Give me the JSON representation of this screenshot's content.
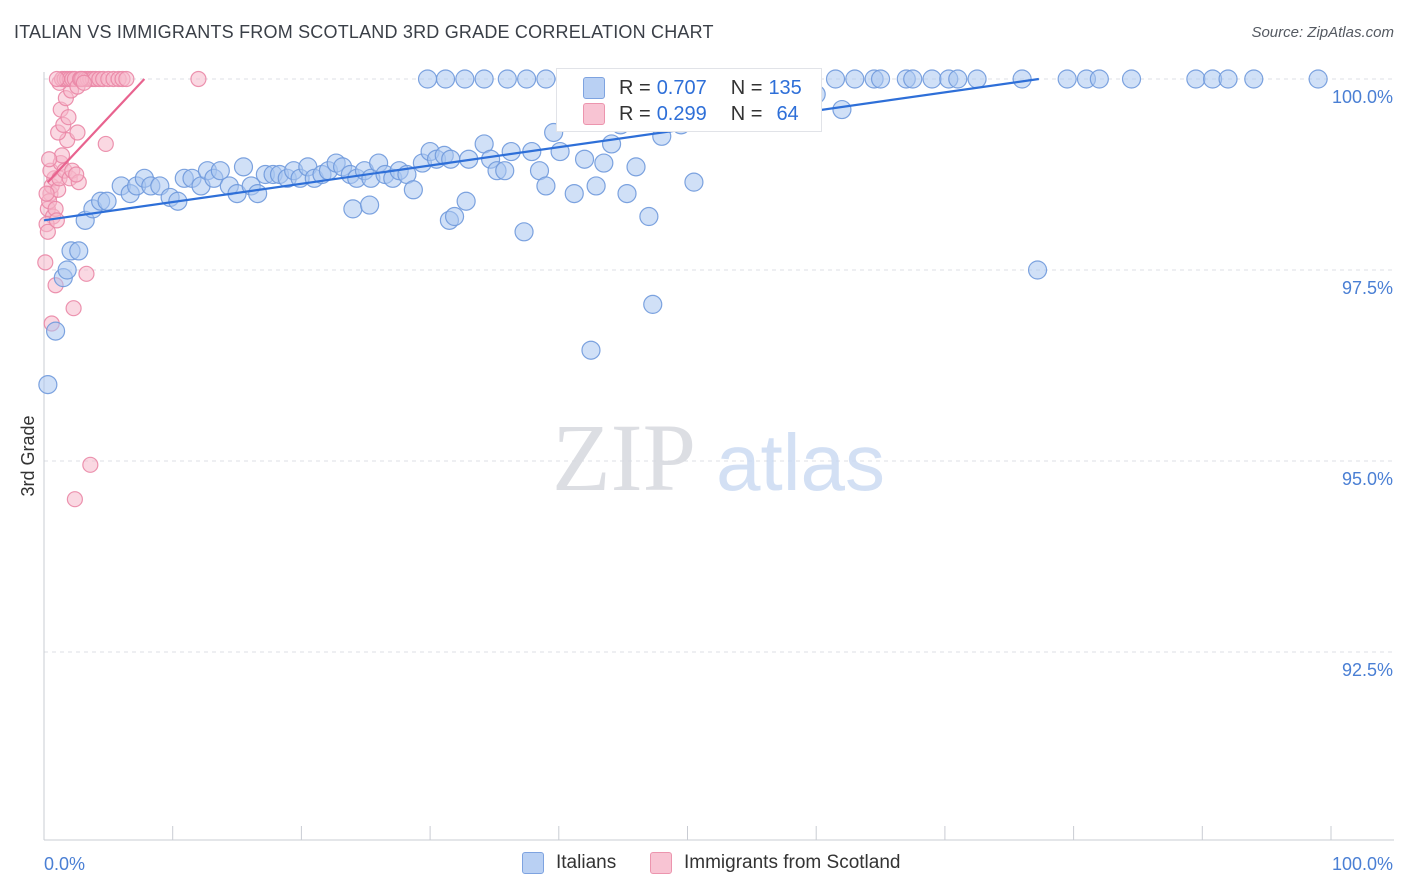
{
  "header": {
    "title": "ITALIAN VS IMMIGRANTS FROM SCOTLAND 3RD GRADE CORRELATION CHART",
    "source": "Source: ZipAtlas.com"
  },
  "legend": {
    "series1": {
      "r_label": "R =",
      "r_value": "0.707",
      "n_label": "N =",
      "n_value": "135"
    },
    "series2": {
      "r_label": "R =",
      "r_value": "0.299",
      "n_label": "N =",
      "n_value": "64"
    }
  },
  "colors": {
    "blue_fill": "#aac6f0",
    "blue_stroke": "#6f99dc",
    "blue_line": "#2e6fd8",
    "pink_fill": "#f6b8cb",
    "pink_stroke": "#ea87a6",
    "pink_line": "#e8638f",
    "grid": "#dcdfe5",
    "tick_label": "#4a7fd4"
  },
  "watermark": {
    "zip": "ZIP",
    "atlas": "atlas"
  },
  "chart_data": {
    "type": "scatter",
    "title": "ITALIAN VS IMMIGRANTS FROM SCOTLAND 3RD GRADE CORRELATION CHART",
    "xlabel": "",
    "ylabel": "3rd Grade",
    "xlim": [
      0,
      100
    ],
    "ylim": [
      90.0,
      100.2
    ],
    "x_tick_labels": [
      "0.0%",
      "100.0%"
    ],
    "y_ticks": [
      {
        "value": 100.0,
        "label": "100.0%"
      },
      {
        "value": 97.5,
        "label": "97.5%"
      },
      {
        "value": 95.0,
        "label": "95.0%"
      },
      {
        "value": 92.5,
        "label": "92.5%"
      }
    ],
    "legend_position": "top-center",
    "series": [
      {
        "name": "Italians",
        "color": "blue",
        "r": 0.707,
        "n": 135,
        "trend": {
          "x": [
            0,
            77.3
          ],
          "y": [
            98.15,
            100.0
          ]
        },
        "points": [
          [
            0.3,
            96.0
          ],
          [
            0.9,
            96.7
          ],
          [
            1.5,
            97.4
          ],
          [
            1.8,
            97.5
          ],
          [
            2.1,
            97.75
          ],
          [
            2.7,
            97.75
          ],
          [
            3.2,
            98.15
          ],
          [
            3.8,
            98.3
          ],
          [
            4.4,
            98.4
          ],
          [
            4.9,
            98.4
          ],
          [
            6.0,
            98.6
          ],
          [
            6.7,
            98.5
          ],
          [
            7.2,
            98.6
          ],
          [
            7.8,
            98.7
          ],
          [
            8.3,
            98.6
          ],
          [
            9.0,
            98.6
          ],
          [
            9.8,
            98.45
          ],
          [
            10.4,
            98.4
          ],
          [
            10.9,
            98.7
          ],
          [
            11.5,
            98.7
          ],
          [
            12.2,
            98.6
          ],
          [
            12.7,
            98.8
          ],
          [
            13.2,
            98.7
          ],
          [
            13.7,
            98.8
          ],
          [
            14.4,
            98.6
          ],
          [
            15.0,
            98.5
          ],
          [
            15.5,
            98.85
          ],
          [
            16.1,
            98.6
          ],
          [
            16.6,
            98.5
          ],
          [
            17.2,
            98.75
          ],
          [
            17.8,
            98.75
          ],
          [
            18.3,
            98.75
          ],
          [
            18.9,
            98.7
          ],
          [
            19.4,
            98.8
          ],
          [
            19.9,
            98.7
          ],
          [
            20.5,
            98.85
          ],
          [
            21.0,
            98.7
          ],
          [
            21.6,
            98.75
          ],
          [
            22.1,
            98.8
          ],
          [
            22.7,
            98.9
          ],
          [
            23.2,
            98.85
          ],
          [
            23.8,
            98.75
          ],
          [
            24.3,
            98.7
          ],
          [
            24.9,
            98.8
          ],
          [
            25.4,
            98.7
          ],
          [
            26.0,
            98.9
          ],
          [
            26.5,
            98.75
          ],
          [
            27.1,
            98.7
          ],
          [
            27.6,
            98.8
          ],
          [
            28.2,
            98.75
          ],
          [
            28.7,
            98.55
          ],
          [
            29.4,
            98.9
          ],
          [
            30.0,
            99.05
          ],
          [
            30.5,
            98.95
          ],
          [
            31.1,
            99.0
          ],
          [
            31.6,
            98.95
          ],
          [
            29.8,
            100.0
          ],
          [
            31.2,
            100.0
          ],
          [
            32.7,
            100.0
          ],
          [
            34.2,
            100.0
          ],
          [
            24.0,
            98.3
          ],
          [
            25.3,
            98.35
          ],
          [
            31.5,
            98.15
          ],
          [
            31.9,
            98.2
          ],
          [
            32.8,
            98.4
          ],
          [
            33.0,
            98.95
          ],
          [
            34.2,
            99.15
          ],
          [
            34.7,
            98.95
          ],
          [
            35.2,
            98.8
          ],
          [
            35.8,
            98.8
          ],
          [
            36.3,
            99.05
          ],
          [
            37.3,
            98.0
          ],
          [
            37.9,
            99.05
          ],
          [
            38.5,
            98.8
          ],
          [
            39.0,
            98.6
          ],
          [
            39.6,
            99.3
          ],
          [
            40.1,
            99.05
          ],
          [
            40.6,
            99.45
          ],
          [
            41.2,
            98.5
          ],
          [
            42.0,
            98.95
          ],
          [
            42.5,
            96.45
          ],
          [
            42.9,
            98.6
          ],
          [
            43.5,
            98.9
          ],
          [
            44.1,
            99.15
          ],
          [
            44.8,
            99.4
          ],
          [
            45.3,
            98.5
          ],
          [
            46.0,
            98.85
          ],
          [
            47.0,
            98.2
          ],
          [
            47.3,
            97.05
          ],
          [
            48.0,
            99.25
          ],
          [
            49.5,
            99.4
          ],
          [
            50.5,
            98.65
          ],
          [
            53.0,
            100.0
          ],
          [
            53.5,
            99.7
          ],
          [
            54.0,
            99.65
          ],
          [
            55.0,
            100.0
          ],
          [
            56.0,
            99.75
          ],
          [
            57.0,
            100.0
          ],
          [
            57.5,
            99.6
          ],
          [
            59.0,
            100.0
          ],
          [
            60.0,
            99.8
          ],
          [
            61.5,
            100.0
          ],
          [
            62.0,
            99.6
          ],
          [
            63.0,
            100.0
          ],
          [
            64.5,
            100.0
          ],
          [
            65.0,
            100.0
          ],
          [
            67.0,
            100.0
          ],
          [
            67.5,
            100.0
          ],
          [
            69.0,
            100.0
          ],
          [
            70.3,
            100.0
          ],
          [
            71.0,
            100.0
          ],
          [
            72.5,
            100.0
          ],
          [
            76.0,
            100.0
          ],
          [
            77.2,
            97.5
          ],
          [
            79.5,
            100.0
          ],
          [
            81.0,
            100.0
          ],
          [
            82.0,
            100.0
          ],
          [
            84.5,
            100.0
          ],
          [
            89.5,
            100.0
          ],
          [
            90.8,
            100.0
          ],
          [
            92.0,
            100.0
          ],
          [
            94.0,
            100.0
          ],
          [
            99.0,
            100.0
          ],
          [
            36.0,
            100.0
          ],
          [
            37.5,
            100.0
          ],
          [
            39.0,
            100.0
          ],
          [
            40.5,
            100.0
          ],
          [
            42.0,
            100.0
          ],
          [
            44.0,
            100.0
          ],
          [
            45.5,
            100.0
          ],
          [
            47.0,
            100.0
          ],
          [
            48.5,
            100.0
          ],
          [
            50.0,
            100.0
          ],
          [
            51.5,
            100.0
          ],
          [
            52.0,
            100.0
          ]
        ]
      },
      {
        "name": "Immigrants from Scotland",
        "color": "pink",
        "r": 0.299,
        "n": 64,
        "trend": {
          "x": [
            0.3,
            7.8
          ],
          "y": [
            98.65,
            100.0
          ]
        },
        "points": [
          [
            0.1,
            97.6
          ],
          [
            0.3,
            98.3
          ],
          [
            0.5,
            98.5
          ],
          [
            0.7,
            98.2
          ],
          [
            0.2,
            98.1
          ],
          [
            0.4,
            98.4
          ],
          [
            0.6,
            98.6
          ],
          [
            0.8,
            98.7
          ],
          [
            0.3,
            98.0
          ],
          [
            0.5,
            98.8
          ],
          [
            0.9,
            98.3
          ],
          [
            1.1,
            98.55
          ],
          [
            1.3,
            98.9
          ],
          [
            1.0,
            98.15
          ],
          [
            1.2,
            98.7
          ],
          [
            1.4,
            99.0
          ],
          [
            1.6,
            98.8
          ],
          [
            1.8,
            99.2
          ],
          [
            2.0,
            98.7
          ],
          [
            2.2,
            98.8
          ],
          [
            1.1,
            99.3
          ],
          [
            1.3,
            99.6
          ],
          [
            1.5,
            99.4
          ],
          [
            1.7,
            99.75
          ],
          [
            1.9,
            99.5
          ],
          [
            2.1,
            99.85
          ],
          [
            1.2,
            99.95
          ],
          [
            1.4,
            100.0
          ],
          [
            1.6,
            100.0
          ],
          [
            1.8,
            100.0
          ],
          [
            2.0,
            100.0
          ],
          [
            2.2,
            100.0
          ],
          [
            2.4,
            100.0
          ],
          [
            2.6,
            99.9
          ],
          [
            2.8,
            100.0
          ],
          [
            3.0,
            100.0
          ],
          [
            3.2,
            100.0
          ],
          [
            3.4,
            100.0
          ],
          [
            3.6,
            100.0
          ],
          [
            3.8,
            100.0
          ],
          [
            4.0,
            100.0
          ],
          [
            4.3,
            100.0
          ],
          [
            4.6,
            100.0
          ],
          [
            5.0,
            100.0
          ],
          [
            5.4,
            100.0
          ],
          [
            5.8,
            100.0
          ],
          [
            6.1,
            100.0
          ],
          [
            6.4,
            100.0
          ],
          [
            4.8,
            99.15
          ],
          [
            2.6,
            99.3
          ],
          [
            3.3,
            97.45
          ],
          [
            2.3,
            97.0
          ],
          [
            3.6,
            94.95
          ],
          [
            2.4,
            94.5
          ],
          [
            0.6,
            96.8
          ],
          [
            0.9,
            97.3
          ],
          [
            2.7,
            98.65
          ],
          [
            1.0,
            100.0
          ],
          [
            2.5,
            98.75
          ],
          [
            12.0,
            100.0
          ],
          [
            0.2,
            98.5
          ],
          [
            0.4,
            98.95
          ],
          [
            2.9,
            100.0
          ],
          [
            3.1,
            99.95
          ]
        ]
      }
    ]
  }
}
